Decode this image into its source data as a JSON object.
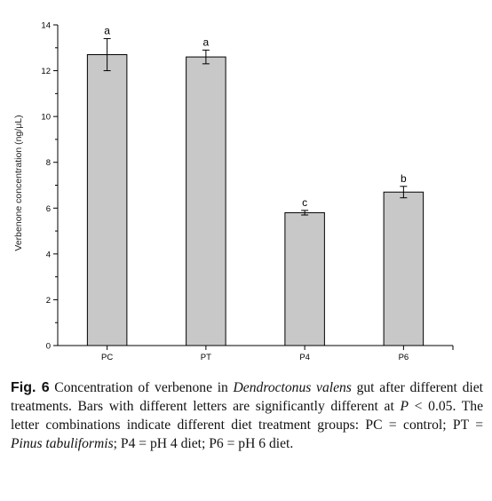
{
  "chart_data": {
    "type": "bar",
    "categories": [
      "PC",
      "PT",
      "P4",
      "P6"
    ],
    "values": [
      12.7,
      12.6,
      5.8,
      6.7
    ],
    "errors": [
      0.7,
      0.3,
      0.1,
      0.25
    ],
    "letters": [
      "a",
      "a",
      "c",
      "b"
    ],
    "title": "",
    "xlabel": "",
    "ylabel": "Verbenone concentration (ng/μL)",
    "ylim": [
      0,
      14
    ],
    "yticks": [
      "0",
      "2",
      "4",
      "6",
      "8",
      "10",
      "12",
      "14"
    ],
    "bar_color": "#c8c8c8",
    "grid": false
  },
  "caption": {
    "label": "Fig. 6",
    "p1": " Concentration of verbenone in ",
    "species": "Dendroctonus valens",
    "p2": " gut after different diet treatments. Bars with different letters are significantly different at ",
    "pvar": "P",
    "p3": " < 0.05. The letter combinations indicate different diet treatment groups: PC = control; PT = ",
    "pinus": "Pinus tabuliformis",
    "p4": "; P4 = pH 4 diet; P6 = pH 6 diet."
  }
}
